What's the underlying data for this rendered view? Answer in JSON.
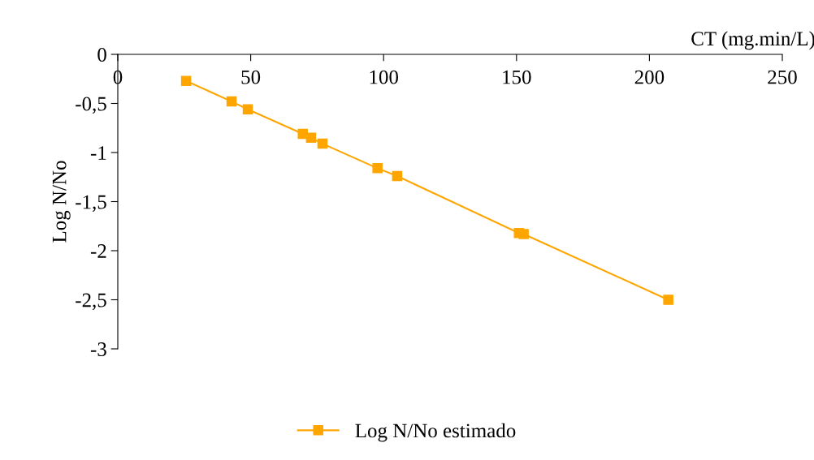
{
  "chart_data": {
    "type": "line",
    "xlabel": "CT (mg.min/L)",
    "ylabel": "Log N/No",
    "xlim": [
      0,
      250
    ],
    "xticks": [
      0,
      50,
      100,
      150,
      200,
      250
    ],
    "ylim": [
      -3,
      0
    ],
    "yticks": [
      {
        "value": -3,
        "label": "-3"
      },
      {
        "value": -2.5,
        "label": "-2,5"
      },
      {
        "value": -2,
        "label": "-2"
      },
      {
        "value": -1.5,
        "label": "-1,5"
      },
      {
        "value": -1,
        "label": "-1"
      },
      {
        "value": -0.5,
        "label": "-0,5"
      },
      {
        "value": 0,
        "label": "0"
      }
    ],
    "x": [
      25.7,
      42.8,
      48.9,
      69.6,
      72.7,
      77.0,
      97.7,
      105.1,
      150.9,
      152.7,
      207.1
    ],
    "series": [
      {
        "name": "Log N/No estimado",
        "color": "#ffa500",
        "values": [
          -0.27,
          -0.48,
          -0.56,
          -0.81,
          -0.85,
          -0.91,
          -1.16,
          -1.24,
          -1.82,
          -1.83,
          -2.5
        ]
      }
    ],
    "marker": "square",
    "line_style": "solid",
    "grid": false,
    "legend": "bottom"
  }
}
